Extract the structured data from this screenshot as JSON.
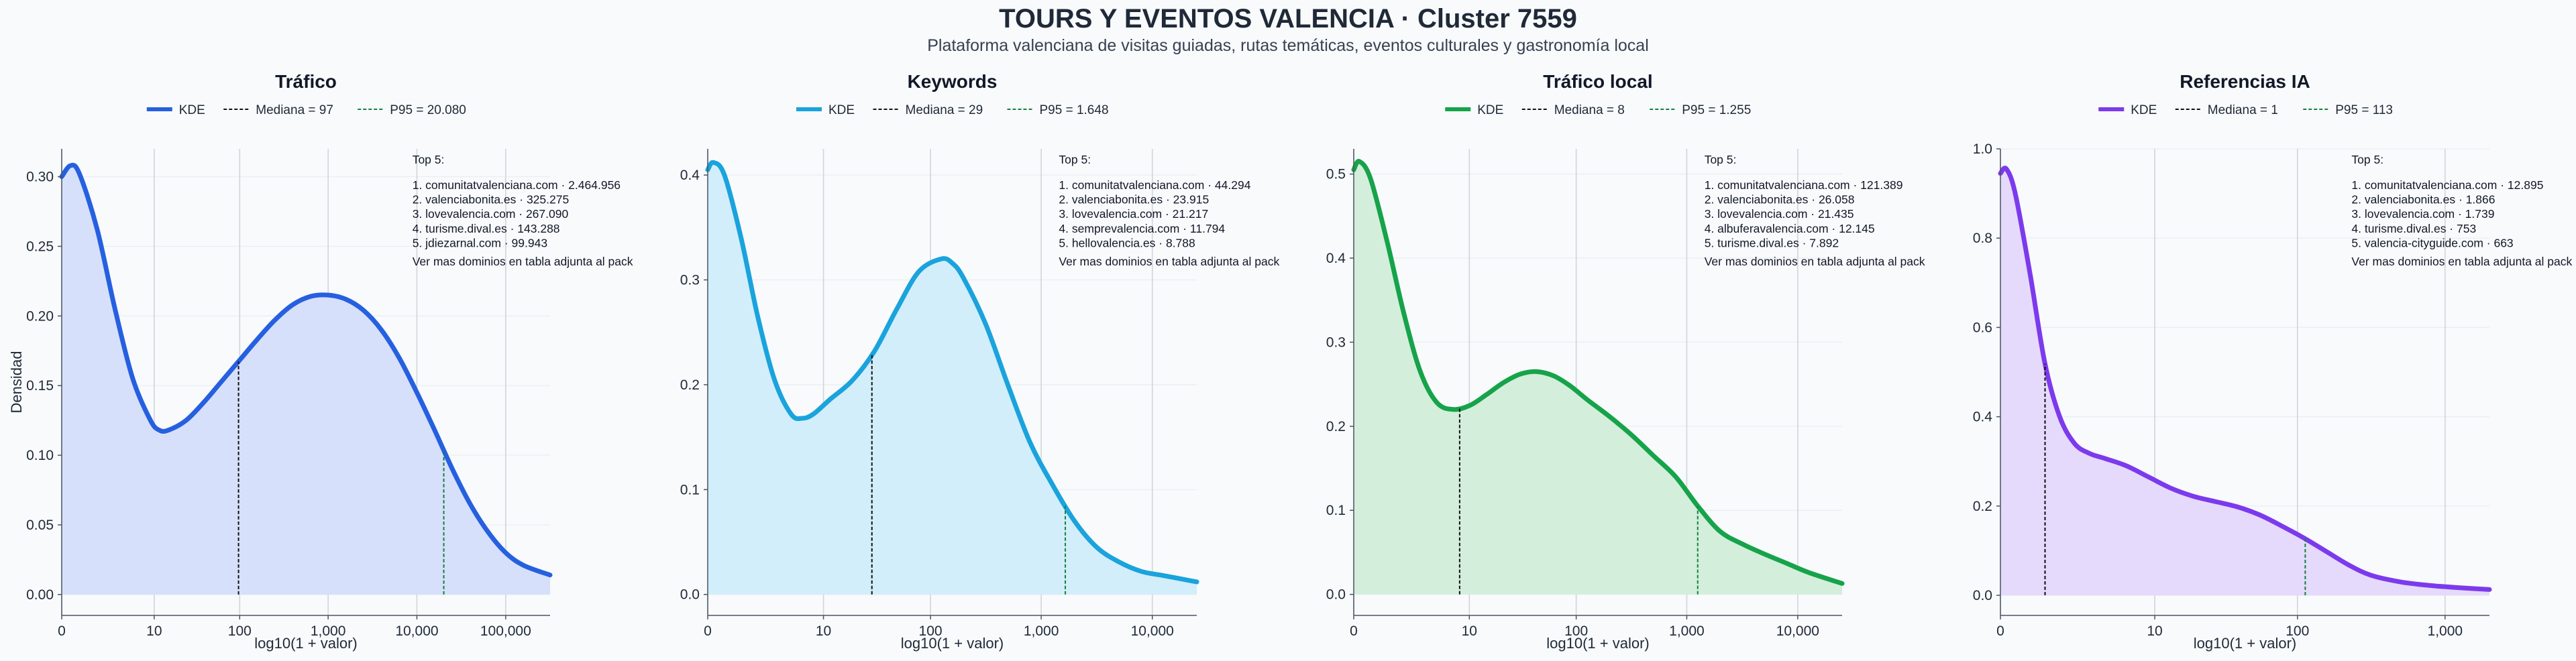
{
  "title": "TOURS Y EVENTOS VALENCIA · Cluster 7559",
  "subtitle": "Plataforma valenciana de visitas guiadas, rutas temáticas, eventos culturales y gastronomía local",
  "y_axis_label": "Densidad",
  "chart_data": [
    {
      "type": "area",
      "title": "Tráfico",
      "color": "#2660e0",
      "fill": "#d6e0fa",
      "legend": [
        "KDE",
        "Mediana = 97",
        "P95 = 20.080"
      ],
      "xlabel": "log10(1 + valor)",
      "ylabel": "Densidad",
      "x_scale": "log1p",
      "xlim": [
        0,
        5.5
      ],
      "ylim": [
        -0.015,
        0.32
      ],
      "x_ticks": [
        0,
        10,
        100,
        1000,
        10000,
        100000
      ],
      "x_tick_labels": [
        "0",
        "10",
        "100",
        "1,000",
        "10,000",
        "100,000"
      ],
      "y_ticks": [
        0,
        0.05,
        0.1,
        0.15,
        0.2,
        0.25,
        0.3
      ],
      "y_tick_labels": [
        "0.00",
        "0.05",
        "0.10",
        "0.15",
        "0.20",
        "0.25",
        "0.30"
      ],
      "median": 97,
      "p95": 20080,
      "kde": {
        "x": [
          0,
          0.1,
          0.2,
          0.4,
          0.6,
          0.8,
          1.0,
          1.1,
          1.2,
          1.4,
          1.6,
          1.8,
          2.0,
          2.2,
          2.4,
          2.6,
          2.8,
          3.0,
          3.2,
          3.4,
          3.6,
          3.8,
          4.0,
          4.2,
          4.4,
          4.6,
          4.8,
          5.0,
          5.2,
          5.5
        ],
        "y": [
          0.3,
          0.308,
          0.302,
          0.262,
          0.205,
          0.155,
          0.125,
          0.118,
          0.118,
          0.125,
          0.138,
          0.153,
          0.168,
          0.183,
          0.197,
          0.208,
          0.214,
          0.215,
          0.212,
          0.204,
          0.19,
          0.17,
          0.145,
          0.118,
          0.09,
          0.065,
          0.045,
          0.03,
          0.021,
          0.014
        ]
      },
      "top5": {
        "heading": "Top 5:",
        "items": [
          "1. comunitatvalenciana.com · 2.464.956",
          "2. valenciabonita.es · 325.275",
          "3. lovevalencia.com · 267.090",
          "4. turisme.dival.es · 143.288",
          "5. jdiezarnal.com · 99.943"
        ],
        "note": "Ver mas dominios en tabla adjunta al pack"
      }
    },
    {
      "type": "area",
      "title": "Keywords",
      "color": "#1aa3dc",
      "fill": "#d2eefa",
      "legend": [
        "KDE",
        "Mediana = 29",
        "P95 = 1.648"
      ],
      "xlabel": "log10(1 + valor)",
      "ylabel": "",
      "x_scale": "log1p",
      "xlim": [
        0,
        4.4
      ],
      "ylim": [
        -0.02,
        0.425
      ],
      "x_ticks": [
        0,
        10,
        100,
        1000,
        10000
      ],
      "x_tick_labels": [
        "0",
        "10",
        "100",
        "1,000",
        "10,000"
      ],
      "y_ticks": [
        0,
        0.1,
        0.2,
        0.3,
        0.4
      ],
      "y_tick_labels": [
        "0.0",
        "0.1",
        "0.2",
        "0.3",
        "0.4"
      ],
      "median": 29,
      "p95": 1648,
      "kde": {
        "x": [
          0,
          0.05,
          0.15,
          0.3,
          0.45,
          0.6,
          0.75,
          0.85,
          0.95,
          1.1,
          1.3,
          1.5,
          1.7,
          1.9,
          2.1,
          2.2,
          2.3,
          2.5,
          2.7,
          2.9,
          3.1,
          3.3,
          3.5,
          3.7,
          3.9,
          4.1,
          4.4
        ],
        "y": [
          0.405,
          0.412,
          0.4,
          0.34,
          0.265,
          0.205,
          0.172,
          0.168,
          0.172,
          0.186,
          0.204,
          0.232,
          0.272,
          0.308,
          0.32,
          0.316,
          0.302,
          0.258,
          0.2,
          0.145,
          0.105,
          0.07,
          0.045,
          0.031,
          0.022,
          0.018,
          0.012
        ]
      },
      "top5": {
        "heading": "Top 5:",
        "items": [
          "1. comunitatvalenciana.com · 44.294",
          "2. valenciabonita.es · 23.915",
          "3. lovevalencia.com · 21.217",
          "4. semprevalencia.com · 11.794",
          "5. hellovalencia.es · 8.788"
        ],
        "note": "Ver mas dominios en tabla adjunta al pack"
      }
    },
    {
      "type": "area",
      "title": "Tráfico local",
      "color": "#16a34a",
      "fill": "#d3eedb",
      "legend": [
        "KDE",
        "Mediana = 8",
        "P95 = 1.255"
      ],
      "xlabel": "log10(1 + valor)",
      "ylabel": "",
      "x_scale": "log1p",
      "xlim": [
        0,
        4.4
      ],
      "ylim": [
        -0.025,
        0.53
      ],
      "x_ticks": [
        0,
        10,
        100,
        1000,
        10000
      ],
      "x_tick_labels": [
        "0",
        "10",
        "100",
        "1,000",
        "10,000"
      ],
      "y_ticks": [
        0,
        0.1,
        0.2,
        0.3,
        0.4,
        0.5
      ],
      "y_tick_labels": [
        "0.0",
        "0.1",
        "0.2",
        "0.3",
        "0.4",
        "0.5"
      ],
      "median": 8,
      "p95": 1255,
      "kde": {
        "x": [
          0,
          0.05,
          0.15,
          0.3,
          0.45,
          0.6,
          0.75,
          0.9,
          1.05,
          1.2,
          1.35,
          1.5,
          1.65,
          1.8,
          1.95,
          2.1,
          2.3,
          2.5,
          2.7,
          2.9,
          3.1,
          3.3,
          3.5,
          3.7,
          3.9,
          4.1,
          4.4
        ],
        "y": [
          0.505,
          0.515,
          0.495,
          0.42,
          0.335,
          0.265,
          0.228,
          0.22,
          0.225,
          0.238,
          0.252,
          0.262,
          0.265,
          0.26,
          0.248,
          0.232,
          0.212,
          0.19,
          0.165,
          0.14,
          0.105,
          0.075,
          0.06,
          0.048,
          0.037,
          0.026,
          0.013
        ]
      },
      "top5": {
        "heading": "Top 5:",
        "items": [
          "1. comunitatvalenciana.com · 121.389",
          "2. valenciabonita.es · 26.058",
          "3. lovevalencia.com · 21.435",
          "4. albuferavalencia.com · 12.145",
          "5. turisme.dival.es · 7.892"
        ],
        "note": "Ver mas dominios en tabla adjunta al pack"
      }
    },
    {
      "type": "area",
      "title": "Referencias IA",
      "color": "#7c3aed",
      "fill": "#e5dafb",
      "legend": [
        "KDE",
        "Mediana = 1",
        "P95 = 113"
      ],
      "xlabel": "log10(1 + valor)",
      "ylabel": "",
      "x_scale": "log1p",
      "xlim": [
        0,
        3.3
      ],
      "ylim": [
        -0.045,
        1.0
      ],
      "x_ticks": [
        0,
        10,
        100,
        1000
      ],
      "x_tick_labels": [
        "0",
        "10",
        "100",
        "1,000"
      ],
      "y_ticks": [
        0,
        0.2,
        0.4,
        0.6,
        0.8,
        1.0
      ],
      "y_tick_labels": [
        "0.0",
        "0.2",
        "0.4",
        "0.6",
        "0.8",
        "1.0"
      ],
      "median": 1,
      "p95": 113,
      "kde": {
        "x": [
          0,
          0.04,
          0.1,
          0.2,
          0.3,
          0.4,
          0.5,
          0.6,
          0.7,
          0.85,
          1.0,
          1.15,
          1.3,
          1.45,
          1.6,
          1.75,
          1.9,
          2.05,
          2.2,
          2.35,
          2.5,
          2.7,
          2.9,
          3.1,
          3.3
        ],
        "y": [
          0.945,
          0.955,
          0.9,
          0.72,
          0.52,
          0.4,
          0.34,
          0.318,
          0.307,
          0.29,
          0.265,
          0.24,
          0.222,
          0.21,
          0.198,
          0.18,
          0.155,
          0.128,
          0.098,
          0.068,
          0.045,
          0.03,
          0.022,
          0.017,
          0.013
        ]
      },
      "top5": {
        "heading": "Top 5:",
        "items": [
          "1. comunitatvalenciana.com · 12.895",
          "2. valenciabonita.es · 1.866",
          "3. lovevalencia.com · 1.739",
          "4. turisme.dival.es · 753",
          "5. valencia-cityguide.com · 663"
        ],
        "note": "Ver mas dominios en tabla adjunta al pack"
      }
    }
  ]
}
